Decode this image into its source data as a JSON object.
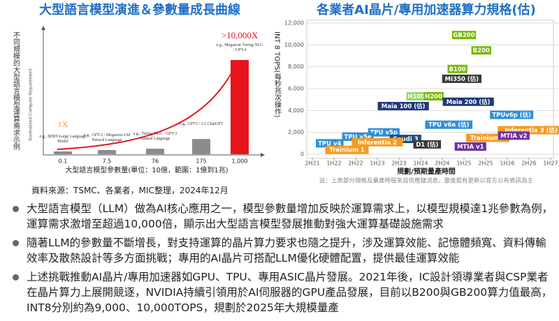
{
  "chart_data": [
    {
      "type": "bar",
      "title": "大型語言模型演進＆參數量成長曲線",
      "side_label": "不同規模的大型語言模型運算需求示例",
      "ylabel": "Normalized Compute Requirement",
      "xlabel": "大型語言模型參數量(單位：10億，範圍：1億到1兆)",
      "categories": [
        "0.1",
        "7.5",
        "76",
        "175",
        "1,000"
      ],
      "values": [
        1,
        1.5,
        2,
        5.5,
        34
      ],
      "colors": [
        "#8c8c8c",
        "#8c8c8c",
        "#8c8c8c",
        "#8c8c8c",
        "#e8141b"
      ],
      "notes": [
        "e.g., BERT-Large Language Model",
        "e.g., GPT-2 / Megatron-LM Natural Language",
        "e.g., Turing-NLG / GPT-3 Natural Language",
        "e.g., GPT3 / 3.5 ChatGPT",
        "e.g., Megatron-Turing NLG / GPT-4"
      ],
      "value_labels": [
        "1X",
        null,
        null,
        null,
        null
      ],
      "annotation": ">10,000X"
    },
    {
      "type": "scatter",
      "title": "各業者AI晶片/專用加速器算力規格(估)",
      "ylabel": "INT 8 TOPS(每秒兆次操作)",
      "xlabel": "規劃/預期量產時間",
      "note": "註：上表部分規格及量產時程來自供應鏈消息，最後若有更新以官方公布資訊為主",
      "xlim": [
        0,
        11
      ],
      "xticks": [
        {
          "value": 0,
          "label": "2H21"
        },
        {
          "value": 1,
          "label": "1H22"
        },
        {
          "value": 2,
          "label": "2H22"
        },
        {
          "value": 3,
          "label": "1H23"
        },
        {
          "value": 4,
          "label": "2H23"
        },
        {
          "value": 5,
          "label": "1H24"
        },
        {
          "value": 6,
          "label": "2H24"
        },
        {
          "value": 7,
          "label": "1H25"
        },
        {
          "value": 8,
          "label": "2H25"
        },
        {
          "value": 9,
          "label": "1H26"
        },
        {
          "value": 10,
          "label": "2H26"
        },
        {
          "value": 11,
          "label": "1H27"
        }
      ],
      "ylim": [
        0,
        12000
      ],
      "yticks": [
        0,
        {
          "value": 2000,
          "label": "2,000"
        },
        {
          "value": 4000,
          "label": "4,000"
        },
        {
          "value": 6000,
          "label": "6,000"
        },
        {
          "value": 8000,
          "label": "8,000"
        },
        {
          "value": 10000,
          "label": "10,000"
        },
        {
          "value": 12000,
          "label": "12,000"
        }
      ],
      "grid": true,
      "points": [
        {
          "label": "GB200",
          "x": 7.0,
          "y": 10900,
          "color": "#76b900"
        },
        {
          "label": "B200",
          "x": 7.8,
          "y": 9500,
          "color": "#76b900"
        },
        {
          "label": "B100",
          "x": 6.7,
          "y": 7800,
          "color": "#76b900"
        },
        {
          "label": "MI350 (估)",
          "x": 6.9,
          "y": 6900,
          "color": "#3a3a3a"
        },
        {
          "label": "H100",
          "x": 4.8,
          "y": 5300,
          "color": "#9bd36b"
        },
        {
          "label": "H200",
          "x": 5.6,
          "y": 5300,
          "color": "#76b900"
        },
        {
          "label": "Maia 100 (估)",
          "x": 4.2,
          "y": 4400,
          "color": "#1f3a7a"
        },
        {
          "label": "Maia 200 (估)",
          "x": 7.2,
          "y": 4800,
          "color": "#1f3a7a"
        },
        {
          "label": "TPUv6p (估)",
          "x": 9.2,
          "y": 3600,
          "color": "#2f8fd8"
        },
        {
          "label": "TPU v6e (估)",
          "x": 6.3,
          "y": 2700,
          "color": "#2f8fd8"
        },
        {
          "label": "Inferentia 3 (估)",
          "x": 10.1,
          "y": 2200,
          "color": "#f59b23"
        },
        {
          "label": "Trainium 2",
          "x": 8.1,
          "y": 1500,
          "color": "#f59b23"
        },
        {
          "label": "MTIA v2",
          "x": 9.3,
          "y": 1700,
          "color": "#7030a0"
        },
        {
          "label": "MTIA v1",
          "x": 7.3,
          "y": 700,
          "color": "#7030a0"
        },
        {
          "label": "TPU v5p",
          "x": 3.3,
          "y": 2000,
          "color": "#2f8fd8"
        },
        {
          "label": "TPU v5e",
          "x": 2.1,
          "y": 1600,
          "color": "#2f8fd8"
        },
        {
          "label": "Gaudi 3",
          "x": 4.3,
          "y": 1400,
          "color": "#1f4e79"
        },
        {
          "label": "Inferentia 2",
          "x": 3.0,
          "y": 1100,
          "color": "#f59b23"
        },
        {
          "label": "TPU v4",
          "x": 0.8,
          "y": 1000,
          "color": "#2f8fd8"
        },
        {
          "label": "D1 (估)",
          "x": 5.3,
          "y": 900,
          "color": "#3a3a3a"
        },
        {
          "label": "Trainium 1",
          "x": 1.6,
          "y": 400,
          "color": "#f59b23"
        }
      ]
    }
  ],
  "source": "資料來源：TSMC、各業者，MIC整理，2024年12月",
  "bullets": [
    "大型語言模型（LLM）做為AI核心應用之一，模型參數量增加反映於運算需求上，以模型規模達1兆參數為例，運算需求激增至超過10,000倍，顯示出大型語言模型發展推動對強大運算基礎設施需求",
    "隨著LLM的參數量不斷增長，對支持運算的晶片算力要求也隨之提升，涉及運算效能、記憶體頻寬、資料傳輸效率及散熱設計等多方面挑戰；專用的AI晶片可搭配LLM優化硬體配置，提供最佳運算效能",
    "上述挑戰推動AI晶片/專用加速器如GPU、TPU、專用ASIC晶片發展。2021年後，IC設計領導業者與CSP業者在晶片算力上展開競逐，NVIDIA持續引領用於AI伺服器的GPU產品發展，目前以B200與GB200算力值最高，INT8分別約為9,000、10,000TOPS，規劃於2025年大規模量產"
  ]
}
